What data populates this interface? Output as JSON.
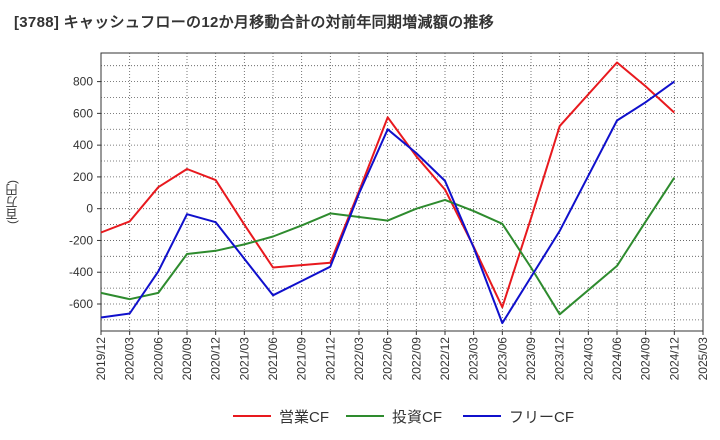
{
  "chart_data": {
    "type": "line",
    "title": "[3788]  キャッシュフローの12か月移動合計の対前年同期増減額の推移",
    "ylabel": "(百万円)",
    "xlabel": "",
    "ylim": [
      -770,
      980
    ],
    "yticks": [
      800,
      600,
      400,
      200,
      0,
      -200,
      -400,
      -600
    ],
    "grid": true,
    "legend_position": "bottom",
    "categories": [
      "2019/12",
      "2020/03",
      "2020/06",
      "2020/09",
      "2020/12",
      "2021/03",
      "2021/06",
      "2021/09",
      "2021/12",
      "2022/03",
      "2022/06",
      "2022/09",
      "2022/12",
      "2023/03",
      "2023/06",
      "2023/09",
      "2023/12",
      "2024/03",
      "2024/06",
      "2024/09",
      "2024/12",
      "2025/03"
    ],
    "series": [
      {
        "name": "営業CF",
        "color": "#e8191e",
        "values": [
          -150,
          -80,
          135,
          250,
          180,
          -100,
          -370,
          -355,
          -340,
          110,
          575,
          330,
          120,
          -240,
          -620,
          -60,
          520,
          null,
          920,
          770,
          605,
          null
        ]
      },
      {
        "name": "投資CF",
        "color": "#2e8b2e",
        "values": [
          -530,
          -570,
          -530,
          -285,
          -265,
          -225,
          -175,
          -105,
          -30,
          null,
          -75,
          0,
          55,
          -15,
          -95,
          -370,
          -665,
          null,
          -360,
          -80,
          195,
          null
        ]
      },
      {
        "name": "フリーCF",
        "color": "#1010cc",
        "values": [
          -685,
          -660,
          -395,
          -35,
          -85,
          -315,
          -545,
          -455,
          -365,
          95,
          500,
          350,
          175,
          -245,
          -720,
          -430,
          -140,
          null,
          555,
          670,
          800,
          null
        ]
      }
    ]
  }
}
